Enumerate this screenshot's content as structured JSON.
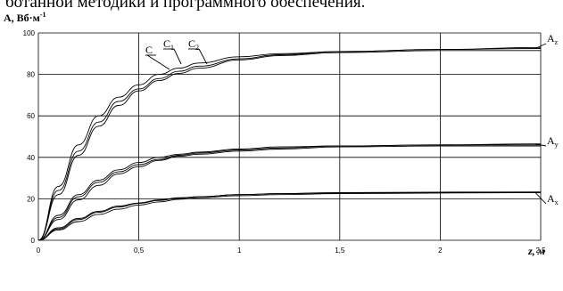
{
  "header_text": "ботанной методики и программного обеспечения.",
  "chart_data": {
    "type": "line",
    "ylabel": "A, Вб·м",
    "ylabel_exp": "-1",
    "xlabel": "z, м",
    "xlim": [
      0,
      2.5
    ],
    "ylim": [
      0,
      100
    ],
    "x_ticks": [
      "0",
      "0,5",
      "1",
      "1,5",
      "2",
      "2,5"
    ],
    "y_ticks": [
      "0",
      "20",
      "40",
      "60",
      "80",
      "100"
    ],
    "grid": true,
    "curve_labels": [
      {
        "main": "C",
        "sub": ""
      },
      {
        "main": "C",
        "sub": "1"
      },
      {
        "main": "C",
        "sub": "2"
      }
    ],
    "series": [
      {
        "name": "Az",
        "label_main": "A",
        "label_sub": "z",
        "x": [
          0,
          0.1,
          0.2,
          0.3,
          0.4,
          0.5,
          0.6,
          0.7,
          0.8,
          1.0,
          1.2,
          1.5,
          2.0,
          2.5
        ],
        "values": [
          0,
          26,
          46,
          60,
          69,
          75,
          80,
          83,
          85.5,
          88.5,
          90,
          91,
          92,
          92.5
        ]
      },
      {
        "name": "Az-C1",
        "x": [
          0,
          0.1,
          0.2,
          0.3,
          0.4,
          0.5,
          0.6,
          0.7,
          0.8,
          1.0,
          1.2,
          1.5,
          2.0,
          2.5
        ],
        "values": [
          0,
          24,
          43,
          57,
          67,
          73,
          78,
          81.5,
          84,
          87.5,
          89.5,
          91,
          92,
          93
        ]
      },
      {
        "name": "Az-C2",
        "x": [
          0,
          0.1,
          0.2,
          0.3,
          0.4,
          0.5,
          0.6,
          0.7,
          0.8,
          1.0,
          1.2,
          1.5,
          2.0,
          2.5
        ],
        "values": [
          0,
          22,
          41,
          55,
          65,
          72,
          77,
          80.5,
          83,
          87,
          89,
          90.5,
          91.5,
          91.5
        ]
      },
      {
        "name": "Ay",
        "label_main": "A",
        "label_sub": "y",
        "x": [
          0,
          0.1,
          0.2,
          0.3,
          0.4,
          0.5,
          0.6,
          0.7,
          0.8,
          1.0,
          1.2,
          1.5,
          2.0,
          2.5
        ],
        "values": [
          0,
          12,
          22,
          29,
          34,
          37.5,
          40,
          41.5,
          42.5,
          44,
          45,
          45.5,
          46,
          46.5
        ]
      },
      {
        "name": "Ay-C1",
        "x": [
          0,
          0.1,
          0.2,
          0.3,
          0.4,
          0.5,
          0.6,
          0.7,
          0.8,
          1.0,
          1.2,
          1.5,
          2.0,
          2.5
        ],
        "values": [
          0,
          11,
          21,
          28,
          33,
          36.5,
          39,
          41,
          42,
          43.5,
          44.5,
          45.5,
          46,
          46
        ]
      },
      {
        "name": "Ay-C2",
        "x": [
          0,
          0.1,
          0.2,
          0.3,
          0.4,
          0.5,
          0.6,
          0.7,
          0.8,
          1.0,
          1.2,
          1.5,
          2.0,
          2.5
        ],
        "values": [
          0,
          10,
          19.5,
          26.5,
          32,
          35.5,
          38.5,
          40.5,
          41.5,
          43,
          44,
          45,
          45.5,
          45.5
        ]
      },
      {
        "name": "Ax",
        "label_main": "A",
        "label_sub": "x",
        "x": [
          0,
          0.1,
          0.2,
          0.3,
          0.4,
          0.5,
          0.6,
          0.7,
          0.8,
          1.0,
          1.2,
          1.5,
          2.0,
          2.5
        ],
        "values": [
          0,
          6,
          10.5,
          14,
          16.5,
          18,
          19.5,
          20.5,
          21,
          22,
          22.5,
          22.8,
          23,
          23
        ]
      },
      {
        "name": "Ax-C1",
        "x": [
          0,
          0.1,
          0.2,
          0.3,
          0.4,
          0.5,
          0.6,
          0.7,
          0.8,
          1.0,
          1.2,
          1.5,
          2.0,
          2.5
        ],
        "values": [
          0,
          5.5,
          10,
          13.5,
          16,
          17.8,
          19.2,
          20.3,
          21,
          22,
          22.5,
          23,
          23.2,
          23.3
        ]
      },
      {
        "name": "Ax-C2",
        "x": [
          0,
          0.1,
          0.2,
          0.3,
          0.4,
          0.5,
          0.6,
          0.7,
          0.8,
          1.0,
          1.2,
          1.5,
          2.0,
          2.5
        ],
        "values": [
          0,
          5,
          9,
          12.5,
          15,
          17,
          18.5,
          19.8,
          20.5,
          21.5,
          22,
          22.5,
          22.8,
          23
        ]
      }
    ]
  }
}
